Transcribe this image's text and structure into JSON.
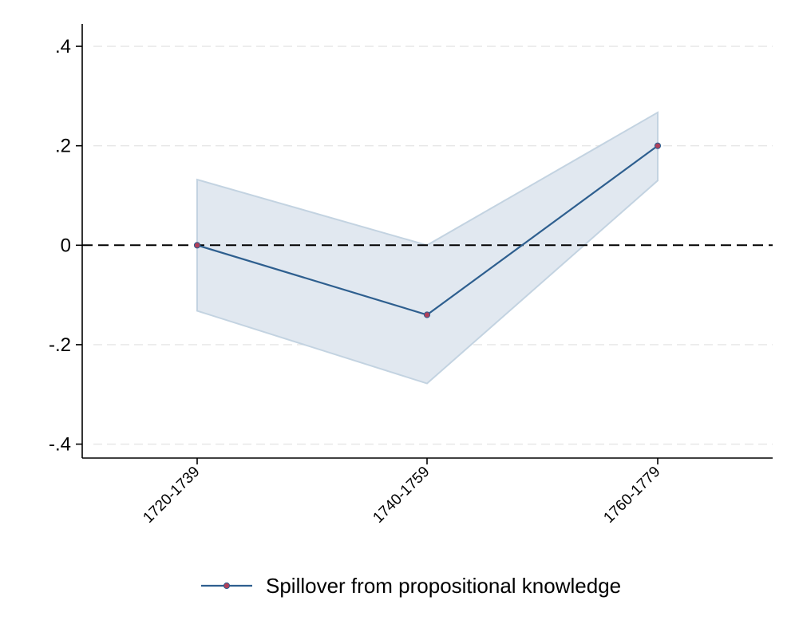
{
  "chart_data": {
    "type": "line",
    "title": "",
    "xlabel": "",
    "ylabel": "",
    "categories": [
      "1720-1739",
      "1740-1759",
      "1760-1779"
    ],
    "y_ticks": [
      ".4",
      ".2",
      "0",
      "-.2",
      "-.4"
    ],
    "y_tick_values": [
      0.4,
      0.2,
      0,
      -0.2,
      -0.4
    ],
    "ylim": [
      -0.428,
      0.445
    ],
    "grid": true,
    "reference_line": {
      "y": 0,
      "style": "dashed",
      "color": "#000000"
    },
    "legend_position": "bottom-center",
    "series": [
      {
        "name": "Spillover from propositional knowledge",
        "values": [
          0.0,
          -0.14,
          0.2
        ],
        "ci_lower": [
          -0.132,
          -0.278,
          0.13
        ],
        "ci_upper": [
          0.132,
          0.0,
          0.267
        ],
        "line_color": "#2e5f8f",
        "marker_color": "#b0405a",
        "ci_fill": "#e1e8f0",
        "ci_stroke": "#c3d3e1"
      }
    ]
  }
}
